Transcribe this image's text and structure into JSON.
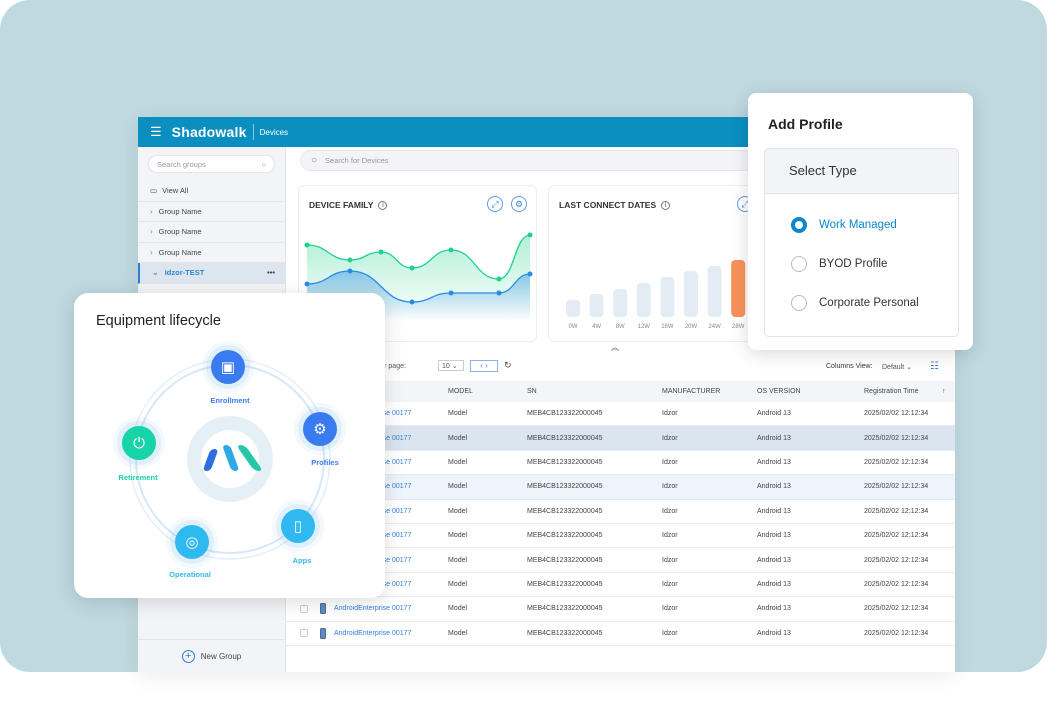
{
  "header": {
    "brand": "Shadowalk",
    "section": "Devices",
    "menu_icon": "menu-icon"
  },
  "sidebar": {
    "search_placeholder": "Search groups",
    "view_all": "View All",
    "groups": [
      "Group Name",
      "Group Name",
      "Group Name"
    ],
    "active_group": "Idzor-TEST",
    "more": "•••",
    "new_group": "New Group"
  },
  "search": {
    "placeholder": "Search for Devices"
  },
  "cards": {
    "device_family": "DEVICE FAMILY",
    "last_connect": "LAST CONNECT DATES"
  },
  "toolbar": {
    "rows_per_page_label": "# of rows per page:",
    "rows_per_page": "10",
    "columns_view_label": "Columns View:",
    "columns_view": "Default"
  },
  "table": {
    "headers": [
      "MODEL",
      "SN",
      "MANUFACTURER",
      "OS VERSION",
      "Registration Time"
    ],
    "rows": [
      {
        "name": "AndroidEnterprise 00177",
        "model": "Model",
        "sn": "MEB4CB123322000045",
        "manufacturer": "Idzor",
        "os": "Android 13",
        "time": "2025/02/02 12:12:34"
      },
      {
        "name": "AndroidEnterprise 00177",
        "model": "Model",
        "sn": "MEB4CB123322000045",
        "manufacturer": "Idzor",
        "os": "Android 13",
        "time": "2025/02/02 12:12:34"
      },
      {
        "name": "AndroidEnterprise 00177",
        "model": "Model",
        "sn": "MEB4CB123322000045",
        "manufacturer": "Idzor",
        "os": "Android 13",
        "time": "2025/02/02 12:12:34"
      },
      {
        "name": "AndroidEnterprise 00177",
        "model": "Model",
        "sn": "MEB4CB123322000045",
        "manufacturer": "Idzor",
        "os": "Android 13",
        "time": "2025/02/02 12:12:34"
      },
      {
        "name": "AndroidEnterprise 00177",
        "model": "Model",
        "sn": "MEB4CB123322000045",
        "manufacturer": "Idzor",
        "os": "Android 13",
        "time": "2025/02/02 12:12:34"
      },
      {
        "name": "AndroidEnterprise 00177",
        "model": "Model",
        "sn": "MEB4CB123322000045",
        "manufacturer": "Idzor",
        "os": "Android 13",
        "time": "2025/02/02 12:12:34"
      },
      {
        "name": "AndroidEnterprise 00177",
        "model": "Model",
        "sn": "MEB4CB123322000045",
        "manufacturer": "Idzor",
        "os": "Android 13",
        "time": "2025/02/02 12:12:34"
      },
      {
        "name": "AndroidEnterprise 00177",
        "model": "Model",
        "sn": "MEB4CB123322000045",
        "manufacturer": "Idzor",
        "os": "Android 13",
        "time": "2025/02/02 12:12:34"
      },
      {
        "name": "AndroidEnterprise 00177",
        "model": "Model",
        "sn": "MEB4CB123322000045",
        "manufacturer": "Idzor",
        "os": "Android 13",
        "time": "2025/02/02 12:12:34"
      },
      {
        "name": "AndroidEnterprise 00177",
        "model": "Model",
        "sn": "MEB4CB123322000045",
        "manufacturer": "Idzor",
        "os": "Android 13",
        "time": "2025/02/02 12:12:34"
      }
    ]
  },
  "add_profile": {
    "title": "Add Profile",
    "select_type": "Select Type",
    "options": [
      "Work Managed",
      "BYOD Profile",
      "Corporate Personal"
    ],
    "selected": 0
  },
  "lifecycle": {
    "title": "Equipment lifecycle",
    "stages": [
      "Enrollment",
      "Profiles",
      "Apps",
      "Operational",
      "Retirement"
    ]
  },
  "chart_data": [
    {
      "type": "area",
      "title": "DEVICE FAMILY",
      "x": [
        1,
        2,
        3,
        4,
        5,
        6,
        7
      ],
      "series": [
        {
          "name": "series-green",
          "color": "#1fd18a",
          "values": [
            76,
            61,
            69,
            53,
            71,
            42,
            86
          ]
        },
        {
          "name": "series-blue",
          "color": "#2a8be6",
          "values": [
            37,
            50,
            null,
            19,
            28,
            28,
            47
          ]
        }
      ],
      "ylim": [
        0,
        100
      ]
    },
    {
      "type": "bar",
      "title": "LAST CONNECT DATES",
      "categories": [
        "0W",
        "4W",
        "8W",
        "12W",
        "16W",
        "20W",
        "24W",
        "28W"
      ],
      "values": [
        17,
        23,
        28,
        34,
        40,
        46,
        51,
        57
      ],
      "highlight": "28W",
      "colors": {
        "bar": "#e3ecf5",
        "highlight": "#f5935a"
      }
    }
  ]
}
